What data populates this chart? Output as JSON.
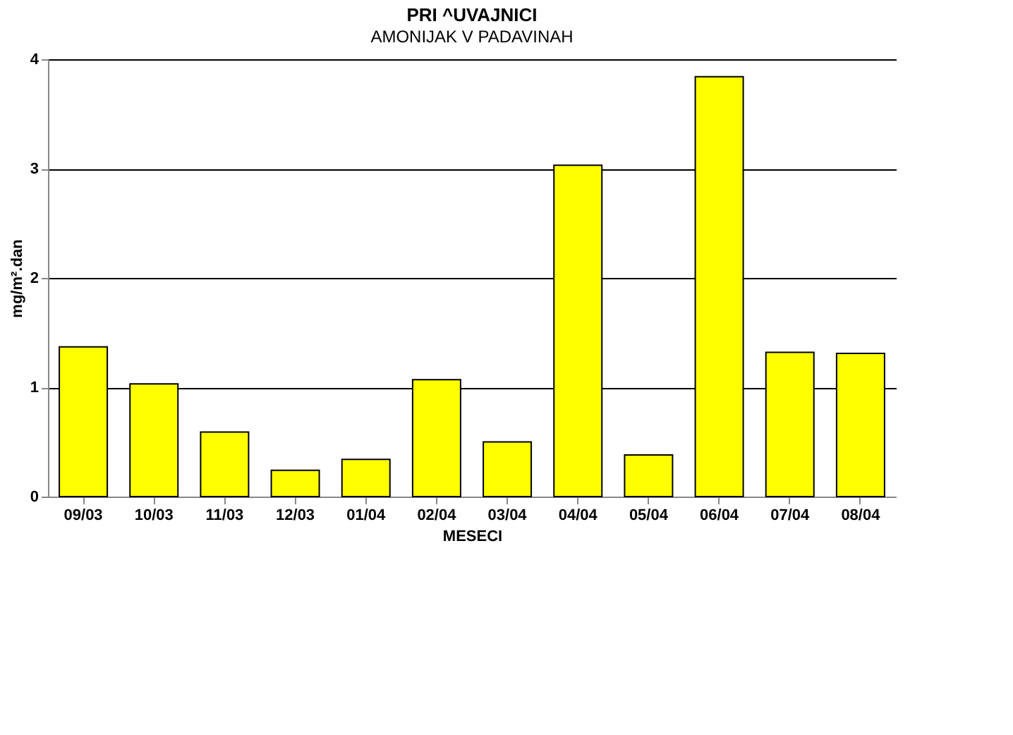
{
  "chart_data": {
    "type": "bar",
    "title": "PRI ^UVAJNICI",
    "subtitle": "AMONIJAK V PADAVINAH",
    "xlabel": "MESECI",
    "ylabel": "mg/m².dan",
    "categories": [
      "09/03",
      "10/03",
      "11/03",
      "12/03",
      "01/04",
      "02/04",
      "03/04",
      "04/04",
      "05/04",
      "06/04",
      "07/04",
      "08/04"
    ],
    "values": [
      1.37,
      1.03,
      0.59,
      0.24,
      0.34,
      1.07,
      0.5,
      3.03,
      0.38,
      3.84,
      1.32,
      1.31
    ],
    "color": "#ffff00",
    "ylim": [
      0,
      4
    ],
    "yticks": [
      0,
      1,
      2,
      3,
      4
    ],
    "grid": "y"
  }
}
